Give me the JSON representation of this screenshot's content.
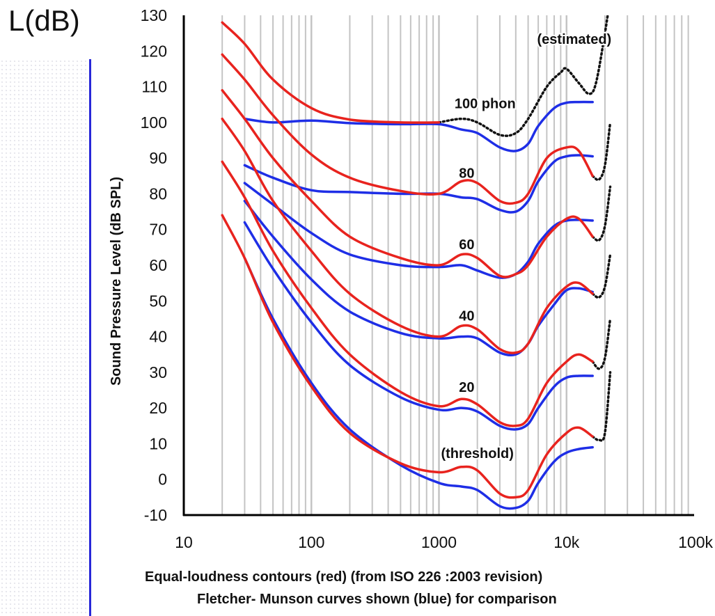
{
  "unit_label": "L(dB)",
  "caption_line1": "Equal-loudness contours (red) (from ISO 226 :2003 revision)",
  "caption_line2": "Fletcher- Munson curves shown (blue) for comparison",
  "colors": {
    "iso": "#e8231e",
    "fletcher": "#1e2ee6",
    "estimated": "#111111",
    "grid": "#c4c4c4",
    "axis": "#000000"
  },
  "chart_data": {
    "type": "line",
    "title": "",
    "xlabel": "",
    "ylabel": "Sound Pressure Level (dB SPL)",
    "xscale": "log",
    "xlim": [
      10,
      100000
    ],
    "ylim": [
      -10,
      130
    ],
    "xticks": [
      10,
      100,
      1000,
      10000,
      100000
    ],
    "xtick_labels": [
      "10",
      "100",
      "1000",
      "10k",
      "100k"
    ],
    "yticks": [
      -10,
      0,
      10,
      20,
      30,
      40,
      50,
      60,
      70,
      80,
      90,
      100,
      110,
      120,
      130
    ],
    "ytick_labels": [
      "-10",
      "0",
      "10",
      "20",
      "30",
      "40",
      "50",
      "60",
      "70",
      "80",
      "90",
      "100",
      "110",
      "120",
      "130"
    ],
    "grid": true,
    "annotations": [
      {
        "text": "(estimated)",
        "x": 11500,
        "y": 122
      },
      {
        "text": "100 phon",
        "x": 2300,
        "y": 104
      },
      {
        "text": "80",
        "x": 1650,
        "y": 84.5
      },
      {
        "text": "60",
        "x": 1650,
        "y": 64.5
      },
      {
        "text": "40",
        "x": 1650,
        "y": 44.5
      },
      {
        "text": "20",
        "x": 1650,
        "y": 24.5
      },
      {
        "text": "(threshold)",
        "x": 2000,
        "y": 6
      }
    ],
    "series": [
      {
        "group": "iso",
        "phon": 100,
        "points": [
          [
            20,
            128
          ],
          [
            30,
            122
          ],
          [
            50,
            112
          ],
          [
            100,
            104
          ],
          [
            200,
            100.8
          ],
          [
            500,
            100
          ],
          [
            1000,
            100
          ]
        ]
      },
      {
        "group": "iso",
        "phon": 80,
        "points": [
          [
            20,
            119
          ],
          [
            30,
            112
          ],
          [
            50,
            102
          ],
          [
            100,
            91
          ],
          [
            200,
            84.5
          ],
          [
            500,
            80.8
          ],
          [
            1000,
            80
          ],
          [
            1500,
            83.5
          ],
          [
            2000,
            83
          ],
          [
            3000,
            78
          ],
          [
            4000,
            77.5
          ],
          [
            5000,
            80
          ],
          [
            7000,
            90
          ],
          [
            10000,
            93
          ],
          [
            12500,
            92
          ],
          [
            16000,
            85
          ]
        ]
      },
      {
        "group": "iso",
        "phon": 60,
        "points": [
          [
            20,
            109
          ],
          [
            30,
            101
          ],
          [
            50,
            90
          ],
          [
            100,
            78
          ],
          [
            200,
            68
          ],
          [
            500,
            62
          ],
          [
            1000,
            60
          ],
          [
            1500,
            63
          ],
          [
            2000,
            62
          ],
          [
            3000,
            57
          ],
          [
            4000,
            57.5
          ],
          [
            5000,
            60
          ],
          [
            7000,
            68
          ],
          [
            10000,
            73
          ],
          [
            12500,
            73
          ],
          [
            16000,
            68
          ]
        ]
      },
      {
        "group": "iso",
        "phon": 40,
        "points": [
          [
            20,
            101
          ],
          [
            30,
            92
          ],
          [
            50,
            78
          ],
          [
            100,
            64
          ],
          [
            200,
            52
          ],
          [
            500,
            43
          ],
          [
            1000,
            40
          ],
          [
            1500,
            43
          ],
          [
            2000,
            42
          ],
          [
            3000,
            36.5
          ],
          [
            4000,
            35.5
          ],
          [
            5000,
            38
          ],
          [
            7000,
            48
          ],
          [
            10000,
            54
          ],
          [
            12500,
            55
          ],
          [
            16000,
            52
          ]
        ]
      },
      {
        "group": "iso",
        "phon": 20,
        "points": [
          [
            20,
            89
          ],
          [
            30,
            79
          ],
          [
            50,
            64
          ],
          [
            100,
            48
          ],
          [
            200,
            35
          ],
          [
            500,
            24.5
          ],
          [
            1000,
            20.5
          ],
          [
            1500,
            22.5
          ],
          [
            2000,
            21
          ],
          [
            3000,
            16
          ],
          [
            4000,
            15
          ],
          [
            5000,
            17
          ],
          [
            7000,
            27
          ],
          [
            10000,
            33
          ],
          [
            12500,
            35
          ],
          [
            16000,
            33
          ]
        ]
      },
      {
        "group": "iso",
        "phon": 0,
        "points": [
          [
            20,
            74
          ],
          [
            30,
            62
          ],
          [
            50,
            44
          ],
          [
            100,
            26
          ],
          [
            200,
            13
          ],
          [
            500,
            4.5
          ],
          [
            1000,
            2
          ],
          [
            1500,
            3.5
          ],
          [
            2000,
            2.5
          ],
          [
            3000,
            -4
          ],
          [
            4000,
            -5
          ],
          [
            5000,
            -3
          ],
          [
            7000,
            7
          ],
          [
            10000,
            13
          ],
          [
            12500,
            14.5
          ],
          [
            16000,
            12
          ]
        ]
      },
      {
        "group": "fletcher",
        "phon": 100,
        "points": [
          [
            30,
            101
          ],
          [
            50,
            100
          ],
          [
            100,
            100.5
          ],
          [
            200,
            99.8
          ],
          [
            500,
            99.5
          ],
          [
            1000,
            99.5
          ],
          [
            1500,
            98
          ],
          [
            2000,
            97
          ],
          [
            3000,
            93
          ],
          [
            4000,
            92
          ],
          [
            5000,
            94
          ],
          [
            6000,
            99
          ],
          [
            8000,
            104
          ],
          [
            10000,
            105.5
          ],
          [
            12500,
            105.7
          ],
          [
            16000,
            105.7
          ]
        ]
      },
      {
        "group": "fletcher",
        "phon": 80,
        "points": [
          [
            30,
            88
          ],
          [
            50,
            84.5
          ],
          [
            100,
            81
          ],
          [
            200,
            80.5
          ],
          [
            500,
            80
          ],
          [
            1000,
            80
          ],
          [
            1500,
            79
          ],
          [
            2000,
            78.5
          ],
          [
            3000,
            75.5
          ],
          [
            4000,
            75
          ],
          [
            5000,
            78
          ],
          [
            6000,
            83.5
          ],
          [
            8000,
            89
          ],
          [
            10000,
            90.5
          ],
          [
            12500,
            90.8
          ],
          [
            16000,
            90.5
          ]
        ]
      },
      {
        "group": "fletcher",
        "phon": 60,
        "points": [
          [
            30,
            83
          ],
          [
            50,
            77
          ],
          [
            100,
            69
          ],
          [
            200,
            63
          ],
          [
            500,
            60
          ],
          [
            1000,
            59.5
          ],
          [
            1500,
            60
          ],
          [
            2000,
            58.5
          ],
          [
            3000,
            56.5
          ],
          [
            4000,
            57.5
          ],
          [
            5000,
            61
          ],
          [
            6000,
            66
          ],
          [
            8000,
            71
          ],
          [
            10000,
            72.5
          ],
          [
            12500,
            72.7
          ],
          [
            16000,
            72.5
          ]
        ]
      },
      {
        "group": "fletcher",
        "phon": 40,
        "points": [
          [
            30,
            78
          ],
          [
            50,
            68
          ],
          [
            100,
            56
          ],
          [
            200,
            47
          ],
          [
            500,
            41
          ],
          [
            1000,
            39.5
          ],
          [
            1500,
            40
          ],
          [
            2000,
            39.5
          ],
          [
            3000,
            35.5
          ],
          [
            4000,
            35
          ],
          [
            5000,
            38
          ],
          [
            6000,
            43
          ],
          [
            8000,
            49
          ],
          [
            10000,
            53
          ],
          [
            12500,
            53.5
          ],
          [
            16000,
            52.5
          ]
        ]
      },
      {
        "group": "fletcher",
        "phon": 20,
        "points": [
          [
            30,
            72
          ],
          [
            50,
            59
          ],
          [
            100,
            44
          ],
          [
            200,
            32
          ],
          [
            500,
            23
          ],
          [
            1000,
            19.5
          ],
          [
            1500,
            20
          ],
          [
            2000,
            19
          ],
          [
            3000,
            15
          ],
          [
            4000,
            14
          ],
          [
            5000,
            15.5
          ],
          [
            6000,
            20
          ],
          [
            8000,
            26
          ],
          [
            10000,
            28.5
          ],
          [
            12500,
            29
          ],
          [
            16000,
            29
          ]
        ]
      },
      {
        "group": "fletcher",
        "phon": 0,
        "points": [
          [
            30,
            62
          ],
          [
            50,
            45
          ],
          [
            100,
            27
          ],
          [
            200,
            14
          ],
          [
            500,
            4
          ],
          [
            1000,
            -1
          ],
          [
            1500,
            -2
          ],
          [
            2000,
            -3
          ],
          [
            3000,
            -7.5
          ],
          [
            4000,
            -8
          ],
          [
            5000,
            -6
          ],
          [
            6000,
            -1
          ],
          [
            8000,
            5
          ],
          [
            10000,
            7.5
          ],
          [
            12500,
            8.5
          ],
          [
            16000,
            9
          ]
        ]
      },
      {
        "group": "estimated",
        "phon": 100,
        "points": [
          [
            1000,
            100
          ],
          [
            1500,
            101
          ],
          [
            2000,
            100
          ],
          [
            3000,
            96.5
          ],
          [
            4000,
            97
          ],
          [
            5000,
            101
          ],
          [
            7000,
            110
          ],
          [
            9000,
            114
          ],
          [
            10000,
            115
          ],
          [
            12500,
            111
          ],
          [
            15000,
            108
          ],
          [
            17000,
            111
          ],
          [
            20000,
            125
          ],
          [
            22000,
            135
          ]
        ]
      },
      {
        "group": "estimated",
        "phon": 80,
        "points": [
          [
            16000,
            85
          ],
          [
            18000,
            84
          ],
          [
            20000,
            88
          ],
          [
            22000,
            100
          ]
        ]
      },
      {
        "group": "estimated",
        "phon": 60,
        "points": [
          [
            16000,
            68
          ],
          [
            18000,
            67
          ],
          [
            20000,
            71
          ],
          [
            22000,
            82
          ]
        ]
      },
      {
        "group": "estimated",
        "phon": 40,
        "points": [
          [
            16000,
            52
          ],
          [
            18000,
            51
          ],
          [
            20000,
            54
          ],
          [
            22000,
            63
          ]
        ]
      },
      {
        "group": "estimated",
        "phon": 20,
        "points": [
          [
            16000,
            33
          ],
          [
            18000,
            31
          ],
          [
            20000,
            34
          ],
          [
            22000,
            45
          ]
        ]
      },
      {
        "group": "estimated",
        "phon": 0,
        "points": [
          [
            16000,
            12
          ],
          [
            18000,
            11
          ],
          [
            20000,
            13
          ],
          [
            22000,
            30
          ]
        ]
      }
    ]
  }
}
